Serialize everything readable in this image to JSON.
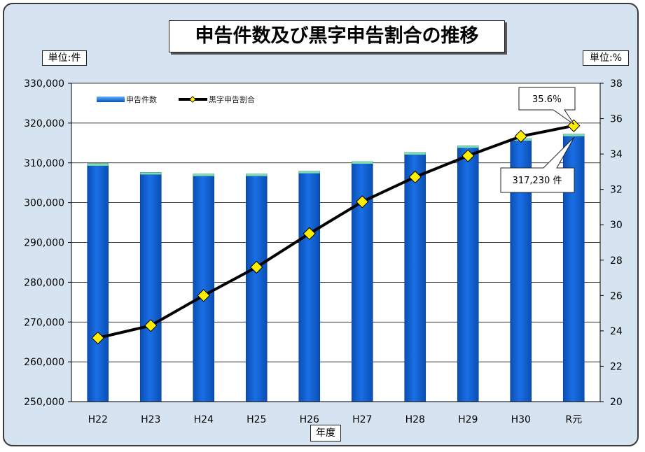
{
  "chart_data": {
    "type": "bar",
    "title": "申告件数及び黒字申告割合の推移",
    "xlabel": "年度",
    "ylabel_left": "単位:件",
    "ylabel_right": "単位:%",
    "categories": [
      "H22",
      "H23",
      "H24",
      "H25",
      "H26",
      "H27",
      "H28",
      "H29",
      "H30",
      "R元"
    ],
    "series": [
      {
        "name": "申告件数",
        "type": "bar",
        "axis": "left",
        "color": "#1565d8",
        "values": [
          309800,
          307600,
          307200,
          307200,
          307900,
          310300,
          312600,
          314300,
          316100,
          317230
        ]
      },
      {
        "name": "黒字申告割合",
        "type": "line",
        "axis": "right",
        "color": "#000000",
        "marker_color": "#ffee00",
        "values": [
          23.6,
          24.3,
          26.0,
          27.6,
          29.5,
          31.3,
          32.7,
          33.9,
          35.0,
          35.6
        ]
      }
    ],
    "ylim_left": [
      250000,
      330000
    ],
    "yticks_left": [
      "250,000",
      "260,000",
      "270,000",
      "280,000",
      "290,000",
      "300,000",
      "310,000",
      "320,000",
      "330,000"
    ],
    "ylim_right": [
      20,
      38
    ],
    "yticks_right": [
      "20",
      "22",
      "24",
      "26",
      "28",
      "30",
      "32",
      "34",
      "36",
      "38"
    ],
    "grid": true,
    "legend_position": "top-left",
    "annotations": [
      {
        "text": "35.6％",
        "target": "黒字申告割合",
        "index": 9
      },
      {
        "text": "317,230 件",
        "target": "申告件数",
        "index": 9
      }
    ]
  }
}
